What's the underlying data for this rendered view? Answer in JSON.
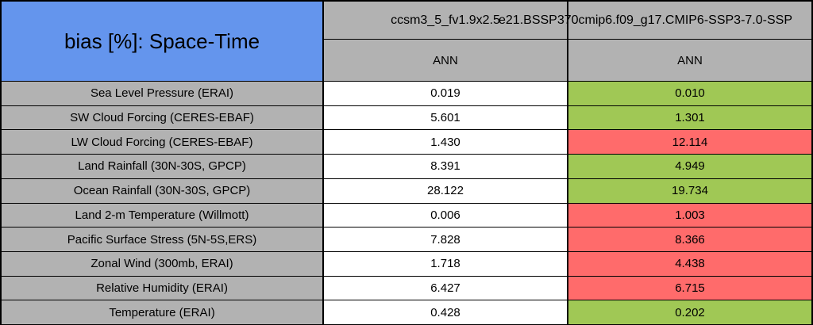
{
  "chart_data": {
    "type": "table",
    "title": "bias [%]: Space-Time",
    "columns": [
      {
        "model": "ccsm3_5_fv1.9x2.5",
        "season": "ANN"
      },
      {
        "model": "e21.BSSP370cmip6.f09_g17.CMIP6-SSP3-7.0-SSP",
        "season": "ANN"
      }
    ],
    "rows": [
      {
        "label": "Sea Level Pressure (ERAI)",
        "values": [
          0.019,
          0.01
        ],
        "display": [
          "0.019",
          "0.010"
        ],
        "highlight": "green"
      },
      {
        "label": "SW Cloud Forcing (CERES-EBAF)",
        "values": [
          5.601,
          1.301
        ],
        "display": [
          "5.601",
          "1.301"
        ],
        "highlight": "green"
      },
      {
        "label": "LW Cloud Forcing (CERES-EBAF)",
        "values": [
          1.43,
          12.114
        ],
        "display": [
          "1.430",
          "12.114"
        ],
        "highlight": "red"
      },
      {
        "label": "Land Rainfall (30N-30S, GPCP)",
        "values": [
          8.391,
          4.949
        ],
        "display": [
          "8.391",
          "4.949"
        ],
        "highlight": "green"
      },
      {
        "label": "Ocean Rainfall (30N-30S, GPCP)",
        "values": [
          28.122,
          19.734
        ],
        "display": [
          "28.122",
          "19.734"
        ],
        "highlight": "green"
      },
      {
        "label": "Land 2-m Temperature (Willmott)",
        "values": [
          0.006,
          1.003
        ],
        "display": [
          "0.006",
          "1.003"
        ],
        "highlight": "red"
      },
      {
        "label": "Pacific Surface Stress (5N-5S,ERS)",
        "values": [
          7.828,
          8.366
        ],
        "display": [
          "7.828",
          "8.366"
        ],
        "highlight": "red"
      },
      {
        "label": "Zonal Wind (300mb, ERAI)",
        "values": [
          1.718,
          4.438
        ],
        "display": [
          "1.718",
          "4.438"
        ],
        "highlight": "red"
      },
      {
        "label": "Relative Humidity (ERAI)",
        "values": [
          6.427,
          6.715
        ],
        "display": [
          "6.427",
          "6.715"
        ],
        "highlight": "red"
      },
      {
        "label": "Temperature (ERAI)",
        "values": [
          0.428,
          0.202
        ],
        "display": [
          "0.428",
          "0.202"
        ],
        "highlight": "green"
      }
    ]
  },
  "colors": {
    "header_blue": "#6495ED",
    "cell_gray": "#B2B2B2",
    "good_green": "#A0C855",
    "bad_red": "#FF6B6B",
    "value_white": "#FFFFFF",
    "border_black": "#000000"
  }
}
